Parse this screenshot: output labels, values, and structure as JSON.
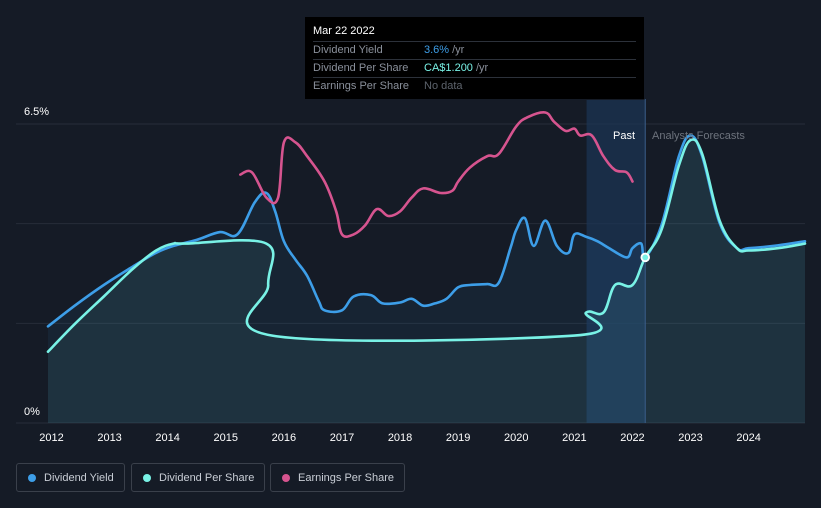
{
  "tooltip": {
    "date": "Mar 22 2022",
    "rows": [
      {
        "label": "Dividend Yield",
        "value": "3.6%",
        "unit": "/yr"
      },
      {
        "label": "Dividend Per Share",
        "value": "CA$1.200",
        "unit": "/yr"
      },
      {
        "label": "Earnings Per Share",
        "value": "No data",
        "unit": ""
      }
    ]
  },
  "labels": {
    "past": "Past",
    "forecasts": "Analysts Forecasts"
  },
  "legend": [
    {
      "label": "Dividend Yield",
      "color": "#3d9ee8"
    },
    {
      "label": "Dividend Per Share",
      "color": "#79f2e6"
    },
    {
      "label": "Earnings Per Share",
      "color": "#d6548f"
    }
  ],
  "chart_data": {
    "type": "line",
    "y_tick_labels": [
      "6.5%",
      "0%"
    ],
    "ylim": [
      0,
      6.5
    ],
    "xlim": [
      2011.94,
      2024.97
    ],
    "x_tick_labels": [
      "2012",
      "2013",
      "2014",
      "2015",
      "2016",
      "2017",
      "2018",
      "2019",
      "2020",
      "2021",
      "2022",
      "2023",
      "2024"
    ],
    "past_until": 2022.22,
    "forecast_from": 2021.21,
    "series": [
      {
        "name": "Dividend Yield",
        "color": "#3d9ee8",
        "area": true,
        "x": [
          2011.94,
          2012.4,
          2012.9,
          2013.4,
          2013.8,
          2014.1,
          2014.5,
          2014.9,
          2015.2,
          2015.5,
          2015.7,
          2015.85,
          2016.0,
          2016.2,
          2016.4,
          2016.6,
          2016.7,
          2017.0,
          2017.2,
          2017.5,
          2017.7,
          2018.0,
          2018.2,
          2018.4,
          2018.6,
          2018.8,
          2019.0,
          2019.2,
          2019.5,
          2019.7,
          2019.9,
          2020.0,
          2020.15,
          2020.3,
          2020.5,
          2020.7,
          2020.9,
          2021.0,
          2021.2,
          2021.4,
          2021.6,
          2021.9,
          2022.0,
          2022.15,
          2022.22,
          2022.5,
          2022.8,
          2023.0,
          2023.2,
          2023.5,
          2023.8,
          2024.0,
          2024.5,
          2024.97
        ],
        "y": [
          2.1,
          2.55,
          3.0,
          3.4,
          3.7,
          3.85,
          3.98,
          4.15,
          4.1,
          4.8,
          5.0,
          4.6,
          3.95,
          3.55,
          3.2,
          2.65,
          2.45,
          2.45,
          2.75,
          2.78,
          2.6,
          2.62,
          2.7,
          2.55,
          2.6,
          2.7,
          2.95,
          3.0,
          3.02,
          3.05,
          3.8,
          4.2,
          4.45,
          3.85,
          4.4,
          3.85,
          3.7,
          4.1,
          4.05,
          3.95,
          3.8,
          3.6,
          3.8,
          3.9,
          3.6,
          4.3,
          5.8,
          6.25,
          5.8,
          4.35,
          3.8,
          3.8,
          3.86,
          3.95
        ]
      },
      {
        "name": "Dividend Per Share",
        "color": "#79f2e6",
        "area": true,
        "x": [
          2011.94,
          2012.4,
          2012.9,
          2013.4,
          2013.8,
          2014.1,
          2014.3,
          2015.7,
          2015.73,
          2015.8,
          2021.0,
          2021.2,
          2021.5,
          2021.7,
          2022.0,
          2022.22,
          2022.5,
          2022.8,
          2023.0,
          2023.2,
          2023.5,
          2023.8,
          2024.0,
          2024.5,
          2024.97
        ],
        "y": [
          1.55,
          2.15,
          2.75,
          3.35,
          3.75,
          3.9,
          3.9,
          3.9,
          3.0,
          1.9,
          1.9,
          2.4,
          2.4,
          3.0,
          3.0,
          3.6,
          4.2,
          5.6,
          6.15,
          5.85,
          4.4,
          3.8,
          3.75,
          3.8,
          3.9
        ]
      },
      {
        "name": "Earnings Per Share",
        "color": "#d6548f",
        "area": false,
        "x": [
          2015.25,
          2015.45,
          2015.7,
          2015.9,
          2016.0,
          2016.2,
          2016.4,
          2016.7,
          2016.9,
          2017.0,
          2017.2,
          2017.4,
          2017.6,
          2017.8,
          2018.0,
          2018.2,
          2018.4,
          2018.7,
          2018.9,
          2019.0,
          2019.2,
          2019.5,
          2019.7,
          2020.0,
          2020.2,
          2020.5,
          2020.65,
          2020.85,
          2021.0,
          2021.1,
          2021.3,
          2021.5,
          2021.7,
          2021.9,
          2022.0
        ],
        "y": [
          5.4,
          5.45,
          4.9,
          4.9,
          6.1,
          6.1,
          5.8,
          5.25,
          4.6,
          4.1,
          4.1,
          4.3,
          4.65,
          4.5,
          4.6,
          4.9,
          5.1,
          5.0,
          5.05,
          5.25,
          5.55,
          5.8,
          5.85,
          6.45,
          6.65,
          6.75,
          6.55,
          6.35,
          6.4,
          6.25,
          6.25,
          5.8,
          5.5,
          5.45,
          5.25
        ]
      }
    ],
    "marker": {
      "x": 2022.22,
      "dps": 3.6,
      "yield": 3.6
    }
  }
}
